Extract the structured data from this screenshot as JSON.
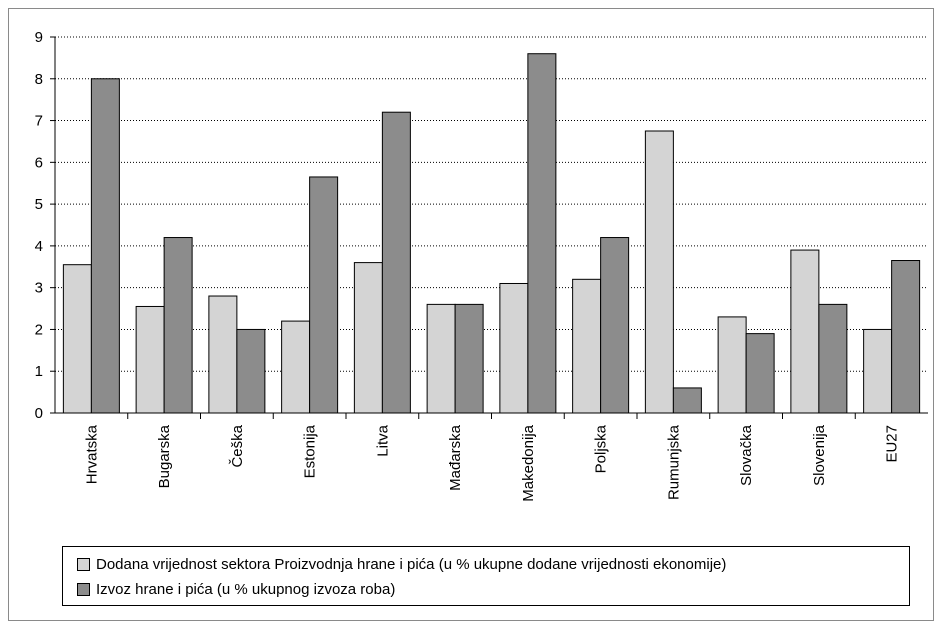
{
  "chart_data": {
    "type": "bar",
    "categories": [
      "Hrvatska",
      "Bugarska",
      "Češka",
      "Estonija",
      "Litva",
      "Mađarska",
      "Makedonija",
      "Poljska",
      "Rumunjska",
      "Slovačka",
      "Slovenija",
      "EU27"
    ],
    "series": [
      {
        "name": "Dodana vrijednost sektora Proizvodnja hrane i pića (u % ukupne dodane vrijednosti ekonomije)",
        "color": "#d4d4d4",
        "values": [
          3.55,
          2.55,
          2.8,
          2.2,
          3.6,
          2.6,
          3.1,
          3.2,
          6.75,
          2.3,
          3.9,
          2.0
        ]
      },
      {
        "name": "Izvoz hrane i pića (u % ukupnog izvoza roba)",
        "color": "#8c8c8c",
        "values": [
          8.0,
          4.2,
          2.0,
          5.65,
          7.2,
          2.6,
          8.6,
          4.2,
          0.6,
          1.9,
          2.6,
          3.65
        ]
      }
    ],
    "ylim": [
      0,
      9
    ],
    "yticks": [
      0,
      1,
      2,
      3,
      4,
      5,
      6,
      7,
      8,
      9
    ],
    "grid": true,
    "legend_position": "bottom"
  }
}
